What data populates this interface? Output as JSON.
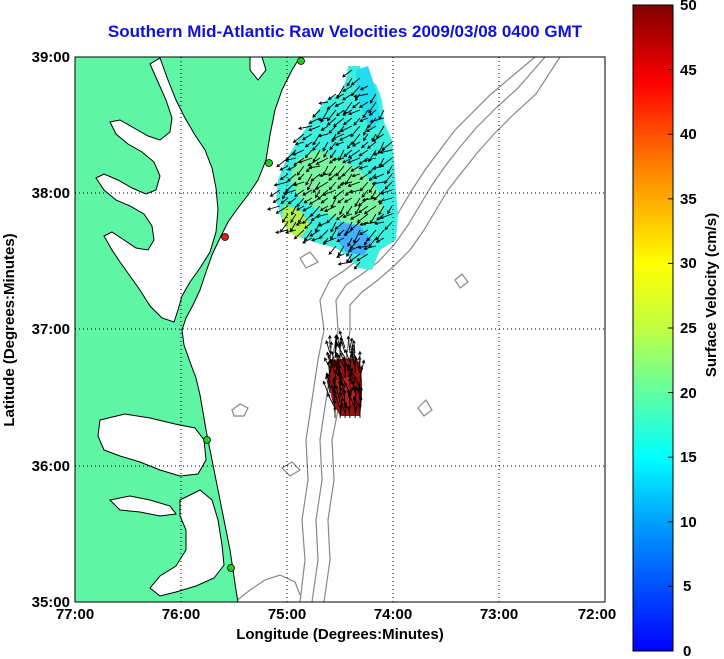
{
  "title": "Southern Mid-Atlantic Raw Velocities 2009/03/08 0400 GMT",
  "map": {
    "x_axis": {
      "label": "Longitude (Degrees:Minutes)",
      "ticks": [
        "77:00",
        "76:00",
        "75:00",
        "74:00",
        "73:00",
        "72:00"
      ]
    },
    "y_axis": {
      "label": "Latitude (Degrees:Minutes)",
      "ticks": [
        "39:00",
        "38:00",
        "37:00",
        "36:00",
        "35:00"
      ]
    },
    "extent": {
      "lon": [
        -77,
        -72
      ],
      "lat": [
        35,
        39
      ]
    },
    "grid": true
  },
  "colorbar": {
    "label": "Surface Velocity (cm/s)",
    "ticks": [
      "50",
      "45",
      "40",
      "35",
      "30",
      "25",
      "20",
      "15",
      "10",
      "5",
      "0"
    ],
    "range": [
      0,
      50
    ]
  },
  "colors": {
    "land": "#5ef6a4",
    "title": "#1010e0",
    "station_active": "#22cc22",
    "station_inactive": "#e02020"
  }
}
